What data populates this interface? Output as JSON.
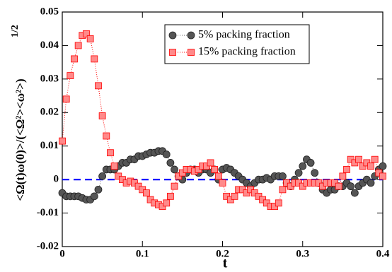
{
  "chart_data": {
    "type": "scatter",
    "xlabel": "t",
    "ylabel": "<Ω(t)ω(0)>/(<Ω²><ω²>)",
    "ylabel_exponent": "1/2",
    "xlim": [
      0,
      0.4
    ],
    "ylim": [
      -0.02,
      0.05
    ],
    "xticks": [
      0,
      0.1,
      0.2,
      0.3,
      0.4
    ],
    "yticks": [
      -0.02,
      -0.01,
      0,
      0.01,
      0.02,
      0.03,
      0.04,
      0.05
    ],
    "reference_line": {
      "value": 0,
      "color": "#0000ff"
    },
    "x": [
      0,
      0.005,
      0.01,
      0.015,
      0.02,
      0.025,
      0.03,
      0.035,
      0.04,
      0.045,
      0.05,
      0.055,
      0.06,
      0.065,
      0.07,
      0.075,
      0.08,
      0.085,
      0.09,
      0.095,
      0.1,
      0.105,
      0.11,
      0.115,
      0.12,
      0.125,
      0.13,
      0.135,
      0.14,
      0.145,
      0.15,
      0.155,
      0.16,
      0.165,
      0.17,
      0.175,
      0.18,
      0.185,
      0.19,
      0.195,
      0.2,
      0.205,
      0.21,
      0.215,
      0.22,
      0.225,
      0.23,
      0.235,
      0.24,
      0.245,
      0.25,
      0.255,
      0.26,
      0.265,
      0.27,
      0.275,
      0.28,
      0.285,
      0.29,
      0.295,
      0.3,
      0.305,
      0.31,
      0.315,
      0.32,
      0.325,
      0.33,
      0.335,
      0.34,
      0.345,
      0.35,
      0.355,
      0.36,
      0.365,
      0.37,
      0.375,
      0.38,
      0.385,
      0.39,
      0.395,
      0.4
    ],
    "series": [
      {
        "name": "5% packing fraction",
        "color": "#555555",
        "marker": "circle",
        "values": [
          -0.004,
          -0.005,
          -0.005,
          -0.005,
          -0.005,
          -0.0055,
          -0.006,
          -0.006,
          -0.005,
          -0.003,
          0.001,
          0.003,
          0.003,
          0.003,
          0.004,
          0.005,
          0.005,
          0.006,
          0.006,
          0.007,
          0.007,
          0.0075,
          0.008,
          0.008,
          0.0085,
          0.0085,
          0.0075,
          0.005,
          0.003,
          0.001,
          0.0,
          0.002,
          0.003,
          0.003,
          0.002,
          0.003,
          0.003,
          0.002,
          0.003,
          0.0,
          0.003,
          0.0035,
          0.003,
          0.002,
          0.001,
          0.0,
          -0.001,
          -0.002,
          -0.001,
          0.0,
          0.0,
          0.0005,
          0.0,
          0.001,
          0.001,
          0.001,
          -0.001,
          -0.002,
          0.0,
          0.002,
          0.004,
          0.006,
          0.005,
          0.002,
          -0.001,
          -0.003,
          -0.004,
          -0.003,
          -0.003,
          -0.002,
          -0.002,
          -0.001,
          -0.002,
          -0.004,
          -0.002,
          -0.001,
          0.0,
          -0.001,
          0.001,
          0.003,
          0.004
        ]
      },
      {
        "name": "15% packing fraction",
        "color": "#ff0000",
        "marker": "square",
        "values": [
          0.0115,
          0.024,
          0.031,
          0.036,
          0.04,
          0.043,
          0.0435,
          0.042,
          0.036,
          0.028,
          0.019,
          0.013,
          0.008,
          0.004,
          0.001,
          0.0,
          -0.001,
          -0.0005,
          -0.001,
          -0.002,
          -0.003,
          -0.004,
          -0.006,
          -0.007,
          -0.0075,
          -0.008,
          -0.007,
          -0.005,
          -0.002,
          0.001,
          0.002,
          0.003,
          0.003,
          0.0025,
          0.003,
          0.004,
          0.004,
          0.005,
          0.003,
          0.001,
          -0.001,
          -0.005,
          -0.006,
          -0.005,
          -0.003,
          -0.003,
          -0.004,
          -0.003,
          -0.004,
          -0.005,
          -0.006,
          -0.007,
          -0.008,
          -0.008,
          -0.007,
          -0.003,
          -0.001,
          -0.002,
          -0.001,
          -0.001,
          -0.002,
          -0.001,
          -0.001,
          -0.001,
          -0.001,
          -0.002,
          -0.001,
          -0.001,
          -0.001,
          -0.002,
          0.001,
          0.003,
          0.006,
          0.005,
          0.006,
          0.004,
          0.005,
          0.004,
          0.006,
          0.002,
          0.001
        ]
      }
    ]
  }
}
